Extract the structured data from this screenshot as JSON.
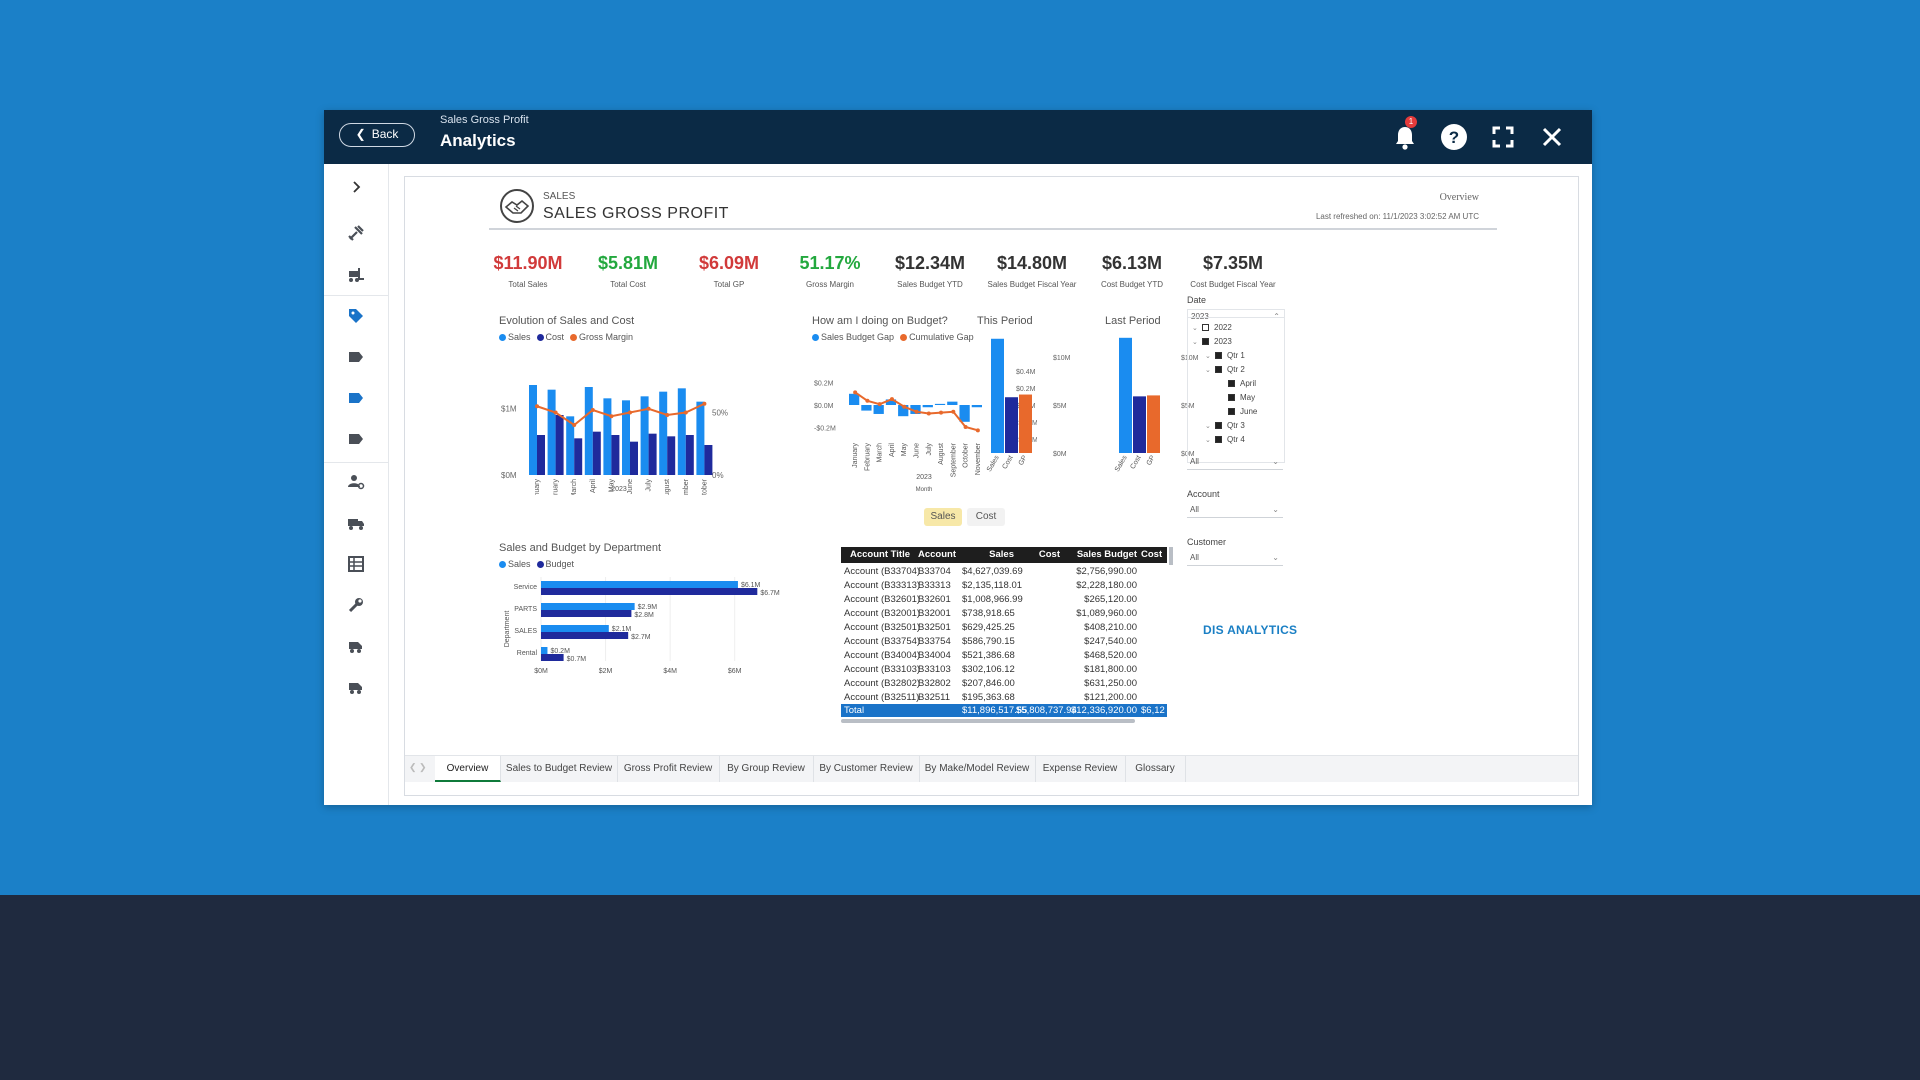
{
  "header": {
    "back_label": "Back",
    "subtitle": "Sales Gross Profit",
    "title": "Analytics",
    "notification_count": "1"
  },
  "report_header": {
    "section": "SALES",
    "title": "SALES GROSS PROFIT",
    "page": "Overview",
    "refreshed": "Last refreshed on: 11/1/2023 3:02:52 AM UTC"
  },
  "kpis": [
    {
      "value": "$11.90M",
      "label": "Total Sales",
      "color": "#d13a3a"
    },
    {
      "value": "$5.81M",
      "label": "Total Cost",
      "color": "#23a83e"
    },
    {
      "value": "$6.09M",
      "label": "Total GP",
      "color": "#d13a3a"
    },
    {
      "value": "51.17%",
      "label": "Gross Margin",
      "color": "#23a83e"
    },
    {
      "value": "$12.34M",
      "label": "Sales Budget YTD",
      "color": "#333333"
    },
    {
      "value": "$14.80M",
      "label": "Sales Budget Fiscal Year",
      "color": "#333333"
    },
    {
      "value": "$6.13M",
      "label": "Cost Budget YTD",
      "color": "#333333"
    },
    {
      "value": "$7.35M",
      "label": "Cost Budget Fiscal Year",
      "color": "#333333"
    }
  ],
  "charts": {
    "evolution": {
      "title": "Evolution of Sales and Cost",
      "legend": [
        "Sales",
        "Cost",
        "Gross Margin"
      ],
      "xlabel": "2023",
      "xsub": "Month",
      "yticks": [
        "$1M",
        "$0M"
      ],
      "y2ticks": [
        "50%",
        "0%"
      ]
    },
    "budget": {
      "title": "How am I doing on Budget?",
      "legend": [
        "Sales Budget Gap",
        "Cumulative Gap"
      ],
      "xlabel": "2023",
      "xsub": "Month",
      "yticks": [
        "$0.2M",
        "$0.0M",
        "-$0.2M"
      ],
      "y2ticks": [
        "$0.4M",
        "$0.2M",
        "$0.0M",
        "-$0.2M",
        "-$0.4M"
      ]
    },
    "this_period": {
      "title": "This Period",
      "yticks": [
        "$10M",
        "$5M",
        "$0M"
      ]
    },
    "last_period": {
      "title": "Last Period",
      "yticks": [
        "$10M",
        "$5M",
        "$0M"
      ]
    },
    "department": {
      "title": "Sales and Budget by Department",
      "legend": [
        "Sales",
        "Budget"
      ],
      "ylabel": "Department",
      "xticks": [
        "$0M",
        "$2M",
        "$4M",
        "$6M"
      ]
    }
  },
  "toggle": {
    "sales": "Sales",
    "cost": "Cost"
  },
  "chart_data": [
    {
      "type": "bar",
      "title": "Evolution of Sales and Cost",
      "categories": [
        "January",
        "February",
        "March",
        "April",
        "May",
        "June",
        "July",
        "August",
        "September",
        "October"
      ],
      "series": [
        {
          "name": "Sales",
          "values": [
            1.35,
            1.28,
            0.88,
            1.32,
            1.15,
            1.12,
            1.18,
            1.25,
            1.3,
            1.1
          ]
        },
        {
          "name": "Cost",
          "values": [
            0.6,
            0.9,
            0.55,
            0.65,
            0.6,
            0.5,
            0.62,
            0.58,
            0.6,
            0.45
          ]
        },
        {
          "name": "Gross Margin",
          "values": [
            55,
            50,
            40,
            52,
            47,
            50,
            53,
            48,
            50,
            57
          ]
        }
      ],
      "ylim": [
        0,
        1.5
      ],
      "y2lim": [
        0,
        80
      ]
    },
    {
      "type": "bar",
      "title": "How am I doing on Budget?",
      "categories": [
        "January",
        "February",
        "March",
        "April",
        "May",
        "June",
        "July",
        "August",
        "September",
        "October",
        "November"
      ],
      "series": [
        {
          "name": "Sales Budget Gap",
          "values": [
            0.1,
            -0.05,
            -0.08,
            0.05,
            -0.1,
            -0.08,
            -0.02,
            0.01,
            0.03,
            -0.15,
            -0.02
          ]
        },
        {
          "name": "Cumulative Gap",
          "values": [
            0.15,
            0.05,
            0.01,
            0.07,
            -0.02,
            -0.08,
            -0.1,
            -0.09,
            -0.08,
            -0.26,
            -0.3
          ]
        }
      ],
      "ylim": [
        -0.25,
        0.25
      ],
      "y2lim": [
        -0.45,
        0.45
      ]
    },
    {
      "type": "bar",
      "title": "This Period",
      "categories": [
        "Sales",
        "Cost",
        "GP"
      ],
      "values": [
        11.9,
        5.81,
        6.09
      ],
      "ylim": [
        0,
        12.5
      ]
    },
    {
      "type": "bar",
      "title": "Last Period",
      "categories": [
        "Sales",
        "Cost",
        "GP"
      ],
      "values": [
        12.0,
        5.9,
        6.0
      ],
      "ylim": [
        0,
        12.5
      ]
    },
    {
      "type": "bar",
      "title": "Sales and Budget by Department",
      "categories": [
        "Service",
        "PARTS",
        "SALES",
        "Rental"
      ],
      "series": [
        {
          "name": "Sales",
          "values": [
            6.1,
            2.9,
            2.1,
            0.2
          ],
          "labels": [
            "$6.1M",
            "$2.9M",
            "$2.1M",
            "$0.2M"
          ]
        },
        {
          "name": "Budget",
          "values": [
            6.7,
            2.8,
            2.7,
            0.7
          ],
          "labels": [
            "$6.7M",
            "$2.8M",
            "$2.7M",
            "$0.7M"
          ]
        }
      ],
      "xlim": [
        0,
        7
      ]
    }
  ],
  "table": {
    "headers": [
      "Account Title",
      "Account",
      "Sales",
      "Cost",
      "Sales Budget",
      "Cost"
    ],
    "rows": [
      [
        "Account (B33704)",
        "B33704",
        "$4,627,039.69",
        "",
        "$2,756,990.00"
      ],
      [
        "Account (B33313)",
        "B33313",
        "$2,135,118.01",
        "",
        "$2,228,180.00"
      ],
      [
        "Account (B32601)",
        "B32601",
        "$1,008,966.99",
        "",
        "$265,120.00"
      ],
      [
        "Account (B32001)",
        "B32001",
        "$738,918.65",
        "",
        "$1,089,960.00"
      ],
      [
        "Account (B32501)",
        "B32501",
        "$629,425.25",
        "",
        "$408,210.00"
      ],
      [
        "Account (B33754)",
        "B33754",
        "$586,790.15",
        "",
        "$247,540.00"
      ],
      [
        "Account (B34004)",
        "B34004",
        "$521,386.68",
        "",
        "$468,520.00"
      ],
      [
        "Account (B33103)",
        "B33103",
        "$302,106.12",
        "",
        "$181,800.00"
      ],
      [
        "Account (B32802)",
        "B32802",
        "$207,846.00",
        "",
        "$631,250.00"
      ],
      [
        "Account (B32511)",
        "B32511",
        "$195,363.68",
        "",
        "$121,200.00"
      ]
    ],
    "total": [
      "Total",
      "",
      "$11,896,517.55",
      "$5,808,737.94",
      "$12,336,920.00",
      "$6,12"
    ]
  },
  "filters": {
    "date_label": "Date",
    "date_value": "2023",
    "tree": [
      "2022",
      "2023",
      "Qtr 1",
      "Qtr 2",
      "April",
      "May",
      "June",
      "Qtr 3",
      "Qtr 4"
    ],
    "all": "All",
    "account_label": "Account",
    "account_value": "All",
    "customer_label": "Customer",
    "customer_value": "All"
  },
  "brand": "DIS ANALYTICS",
  "tabs": [
    "Overview",
    "Sales to Budget Review",
    "Gross Profit Review",
    "By Group Review",
    "By Customer Review",
    "By Make/Model Review",
    "Expense Review",
    "Glossary"
  ],
  "colors": {
    "sales": "#1a8cf0",
    "cost": "#1f2a9c",
    "margin": "#e8692c",
    "header_bg": "#0b2a45",
    "page_bg": "#1b80c8"
  }
}
